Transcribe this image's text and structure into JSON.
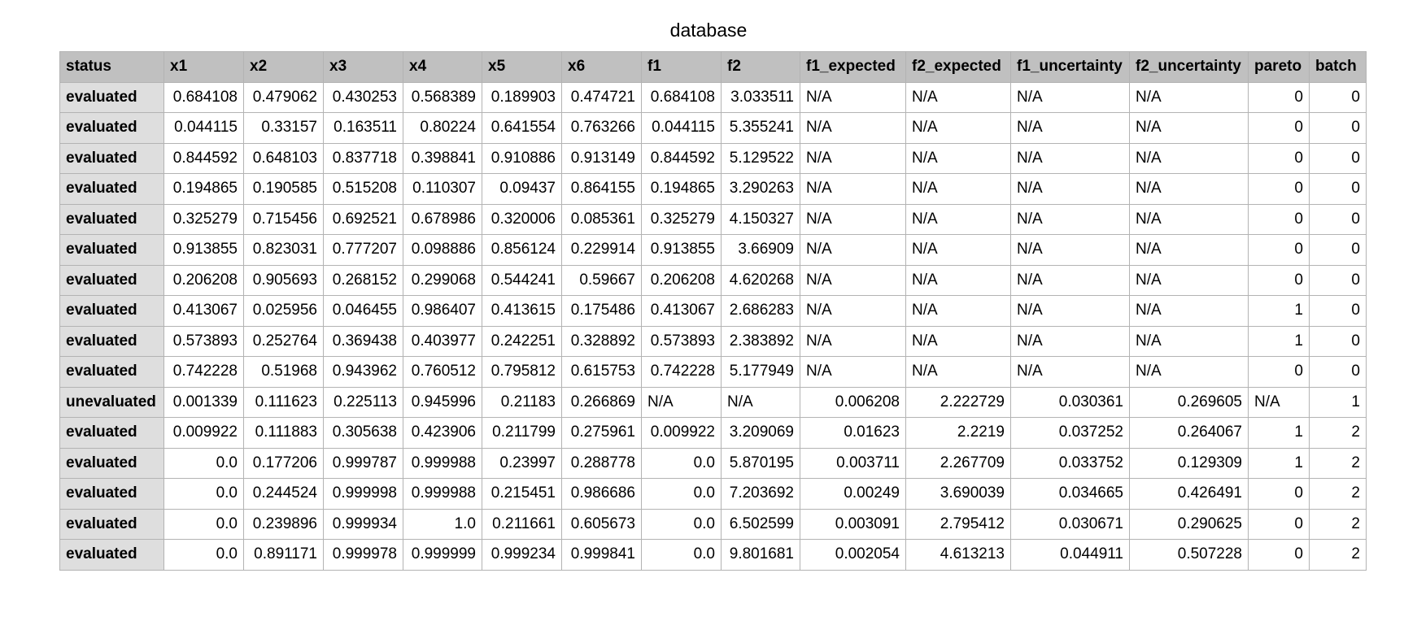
{
  "title": "database",
  "columns": [
    "status",
    "x1",
    "x2",
    "x3",
    "x4",
    "x5",
    "x6",
    "f1",
    "f2",
    "f1_expected",
    "f2_expected",
    "f1_uncertainty",
    "f2_uncertainty",
    "pareto",
    "batch"
  ],
  "rows": [
    [
      "evaluated",
      "0.684108",
      "0.479062",
      "0.430253",
      "0.568389",
      "0.189903",
      "0.474721",
      "0.684108",
      "3.033511",
      "N/A",
      "N/A",
      "N/A",
      "N/A",
      "0",
      "0"
    ],
    [
      "evaluated",
      "0.044115",
      "0.33157",
      "0.163511",
      "0.80224",
      "0.641554",
      "0.763266",
      "0.044115",
      "5.355241",
      "N/A",
      "N/A",
      "N/A",
      "N/A",
      "0",
      "0"
    ],
    [
      "evaluated",
      "0.844592",
      "0.648103",
      "0.837718",
      "0.398841",
      "0.910886",
      "0.913149",
      "0.844592",
      "5.129522",
      "N/A",
      "N/A",
      "N/A",
      "N/A",
      "0",
      "0"
    ],
    [
      "evaluated",
      "0.194865",
      "0.190585",
      "0.515208",
      "0.110307",
      "0.09437",
      "0.864155",
      "0.194865",
      "3.290263",
      "N/A",
      "N/A",
      "N/A",
      "N/A",
      "0",
      "0"
    ],
    [
      "evaluated",
      "0.325279",
      "0.715456",
      "0.692521",
      "0.678986",
      "0.320006",
      "0.085361",
      "0.325279",
      "4.150327",
      "N/A",
      "N/A",
      "N/A",
      "N/A",
      "0",
      "0"
    ],
    [
      "evaluated",
      "0.913855",
      "0.823031",
      "0.777207",
      "0.098886",
      "0.856124",
      "0.229914",
      "0.913855",
      "3.66909",
      "N/A",
      "N/A",
      "N/A",
      "N/A",
      "0",
      "0"
    ],
    [
      "evaluated",
      "0.206208",
      "0.905693",
      "0.268152",
      "0.299068",
      "0.544241",
      "0.59667",
      "0.206208",
      "4.620268",
      "N/A",
      "N/A",
      "N/A",
      "N/A",
      "0",
      "0"
    ],
    [
      "evaluated",
      "0.413067",
      "0.025956",
      "0.046455",
      "0.986407",
      "0.413615",
      "0.175486",
      "0.413067",
      "2.686283",
      "N/A",
      "N/A",
      "N/A",
      "N/A",
      "1",
      "0"
    ],
    [
      "evaluated",
      "0.573893",
      "0.252764",
      "0.369438",
      "0.403977",
      "0.242251",
      "0.328892",
      "0.573893",
      "2.383892",
      "N/A",
      "N/A",
      "N/A",
      "N/A",
      "1",
      "0"
    ],
    [
      "evaluated",
      "0.742228",
      "0.51968",
      "0.943962",
      "0.760512",
      "0.795812",
      "0.615753",
      "0.742228",
      "5.177949",
      "N/A",
      "N/A",
      "N/A",
      "N/A",
      "0",
      "0"
    ],
    [
      "unevaluated",
      "0.001339",
      "0.111623",
      "0.225113",
      "0.945996",
      "0.21183",
      "0.266869",
      "N/A",
      "N/A",
      "0.006208",
      "2.222729",
      "0.030361",
      "0.269605",
      "N/A",
      "1"
    ],
    [
      "evaluated",
      "0.009922",
      "0.111883",
      "0.305638",
      "0.423906",
      "0.211799",
      "0.275961",
      "0.009922",
      "3.209069",
      "0.01623",
      "2.2219",
      "0.037252",
      "0.264067",
      "1",
      "2"
    ],
    [
      "evaluated",
      "0.0",
      "0.177206",
      "0.999787",
      "0.999988",
      "0.23997",
      "0.288778",
      "0.0",
      "5.870195",
      "0.003711",
      "2.267709",
      "0.033752",
      "0.129309",
      "1",
      "2"
    ],
    [
      "evaluated",
      "0.0",
      "0.244524",
      "0.999998",
      "0.999988",
      "0.215451",
      "0.986686",
      "0.0",
      "7.203692",
      "0.00249",
      "3.690039",
      "0.034665",
      "0.426491",
      "0",
      "2"
    ],
    [
      "evaluated",
      "0.0",
      "0.239896",
      "0.999934",
      "1.0",
      "0.211661",
      "0.605673",
      "0.0",
      "6.502599",
      "0.003091",
      "2.795412",
      "0.030671",
      "0.290625",
      "0",
      "2"
    ],
    [
      "evaluated",
      "0.0",
      "0.891171",
      "0.999978",
      "0.999999",
      "0.999234",
      "0.999841",
      "0.0",
      "9.801681",
      "0.002054",
      "4.613213",
      "0.044911",
      "0.507228",
      "0",
      "2"
    ]
  ]
}
